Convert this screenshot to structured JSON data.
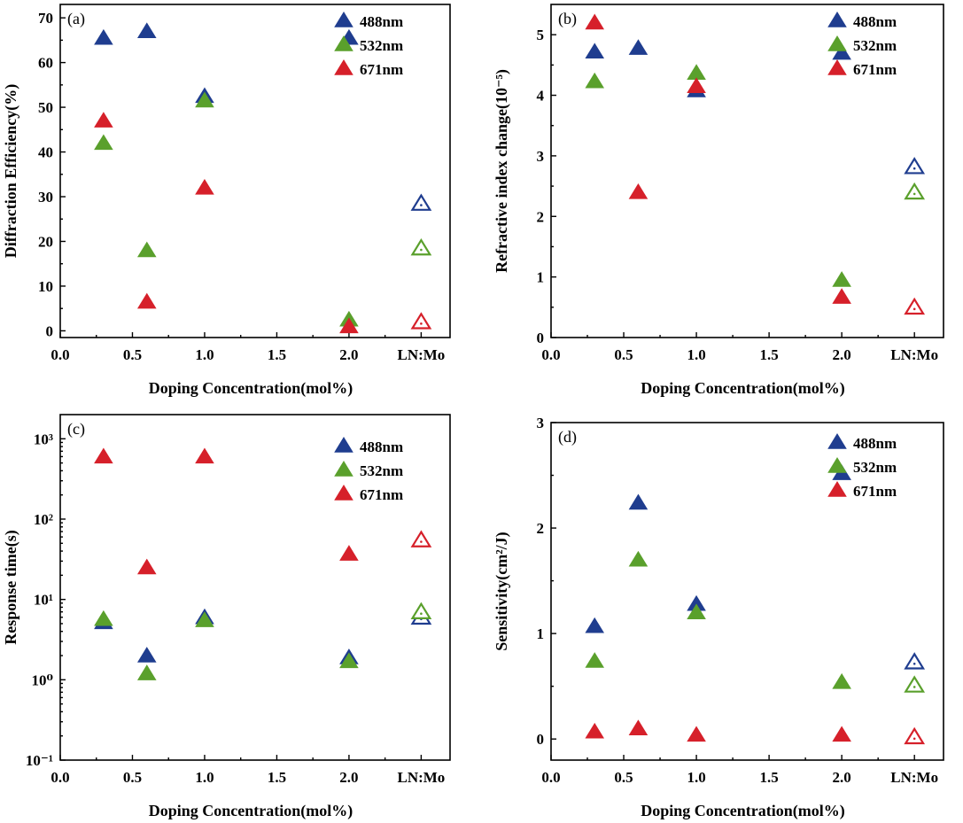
{
  "colors": {
    "488nm": "#1f3d8f",
    "532nm": "#5aa02c",
    "671nm": "#d6202a"
  },
  "chart_data": [
    {
      "type": "scatter",
      "panel_label": "(a)",
      "xlabel": "Doping Concentration(mol%)",
      "ylabel": "Diffraction Efficiency(%)",
      "x_tick_labels": [
        "0.0",
        "0.5",
        "1.0",
        "1.5",
        "2.0",
        "LN:Mo"
      ],
      "x_ticks": [
        0,
        0.5,
        1,
        1.5,
        2,
        2.5
      ],
      "xlim": [
        0,
        2.7
      ],
      "ylim": [
        -1.5,
        73
      ],
      "y_ticks": [
        0,
        10,
        20,
        30,
        40,
        50,
        60,
        70
      ],
      "y_tick_labels": [
        "0",
        "10",
        "20",
        "30",
        "40",
        "50",
        "60",
        "70"
      ],
      "yscale": "linear",
      "legend_position": "top-right",
      "series": [
        {
          "name": "488nm",
          "x": [
            0.3,
            0.6,
            1.0,
            2.0,
            2.5
          ],
          "y": [
            65.5,
            67.0,
            52.5,
            65.5,
            28.5
          ],
          "hollow": [
            false,
            false,
            false,
            false,
            true
          ]
        },
        {
          "name": "532nm",
          "x": [
            0.3,
            0.6,
            1.0,
            2.0,
            2.5
          ],
          "y": [
            42.0,
            18.0,
            51.5,
            2.5,
            18.5
          ],
          "hollow": [
            false,
            false,
            false,
            false,
            true
          ]
        },
        {
          "name": "671nm",
          "x": [
            0.3,
            0.6,
            1.0,
            2.0,
            2.5
          ],
          "y": [
            47.0,
            6.5,
            32.0,
            1.0,
            2.0
          ],
          "hollow": [
            false,
            false,
            false,
            false,
            true
          ]
        }
      ]
    },
    {
      "type": "scatter",
      "panel_label": "(b)",
      "xlabel": "Doping Concentration(mol%)",
      "ylabel": "Refractive index change(10⁻⁵)",
      "x_tick_labels": [
        "0.0",
        "0.5",
        "1.0",
        "1.5",
        "2.0",
        "LN:Mo"
      ],
      "x_ticks": [
        0,
        0.5,
        1,
        1.5,
        2,
        2.5
      ],
      "xlim": [
        0,
        2.7
      ],
      "ylim": [
        0,
        5.5
      ],
      "y_ticks": [
        0,
        1,
        2,
        3,
        4,
        5
      ],
      "y_tick_labels": [
        "0",
        "1",
        "2",
        "3",
        "4",
        "5"
      ],
      "yscale": "linear",
      "legend_position": "top-right",
      "series": [
        {
          "name": "488nm",
          "x": [
            0.3,
            0.6,
            1.0,
            2.0,
            2.5
          ],
          "y": [
            4.72,
            4.78,
            4.08,
            4.7,
            2.82
          ],
          "hollow": [
            false,
            false,
            false,
            false,
            true
          ]
        },
        {
          "name": "532nm",
          "x": [
            0.3,
            0.6,
            1.0,
            2.0,
            2.5
          ],
          "y": [
            4.23,
            null,
            4.37,
            0.95,
            2.4
          ],
          "hollow": [
            false,
            false,
            false,
            false,
            true
          ]
        },
        {
          "name": "671nm",
          "x": [
            0.3,
            0.6,
            1.0,
            2.0,
            2.5
          ],
          "y": [
            5.2,
            2.4,
            4.15,
            0.67,
            0.5
          ],
          "hollow": [
            false,
            false,
            false,
            false,
            true
          ]
        }
      ]
    },
    {
      "type": "scatter",
      "panel_label": "(c)",
      "xlabel": "Doping Concentration(mol%)",
      "ylabel": "Response time(s)",
      "x_tick_labels": [
        "0.0",
        "0.5",
        "1.0",
        "1.5",
        "2.0",
        "LN:Mo"
      ],
      "x_ticks": [
        0,
        0.5,
        1,
        1.5,
        2,
        2.5
      ],
      "xlim": [
        0,
        2.7
      ],
      "ylim": [
        0.1,
        2000
      ],
      "y_ticks": [
        0.1,
        1,
        10,
        100,
        1000
      ],
      "y_tick_labels": [
        "10⁻¹",
        "10⁰",
        "10¹",
        "10²",
        "10³"
      ],
      "yscale": "log",
      "legend_position": "top-right",
      "series": [
        {
          "name": "488nm",
          "x": [
            0.3,
            0.6,
            1.0,
            2.0,
            2.5
          ],
          "y": [
            5.2,
            2.0,
            6.0,
            1.9,
            6.0
          ],
          "hollow": [
            false,
            false,
            false,
            false,
            true
          ]
        },
        {
          "name": "532nm",
          "x": [
            0.3,
            0.6,
            1.0,
            2.0,
            2.5
          ],
          "y": [
            5.7,
            1.2,
            5.5,
            1.7,
            7.0
          ],
          "hollow": [
            false,
            false,
            false,
            false,
            true
          ]
        },
        {
          "name": "671nm",
          "x": [
            0.3,
            0.6,
            1.0,
            2.0,
            2.5
          ],
          "y": [
            600,
            25,
            600,
            37,
            55
          ],
          "hollow": [
            false,
            false,
            false,
            false,
            true
          ]
        }
      ]
    },
    {
      "type": "scatter",
      "panel_label": "(d)",
      "xlabel": "Doping Concentration(mol%)",
      "ylabel": "Sensitivity(cm²/J)",
      "x_tick_labels": [
        "0.0",
        "0.5",
        "1.0",
        "1.5",
        "2.0",
        "LN:Mo"
      ],
      "x_ticks": [
        0,
        0.5,
        1,
        1.5,
        2,
        2.5
      ],
      "xlim": [
        0,
        2.7
      ],
      "ylim": [
        -0.2,
        3
      ],
      "y_ticks": [
        0,
        1,
        2,
        3
      ],
      "y_tick_labels": [
        "0",
        "1",
        "2",
        "3"
      ],
      "yscale": "linear",
      "legend_position": "top-right",
      "series": [
        {
          "name": "488nm",
          "x": [
            0.3,
            0.6,
            1.0,
            2.0,
            2.5
          ],
          "y": [
            1.07,
            2.24,
            1.28,
            2.52,
            0.73
          ],
          "hollow": [
            false,
            false,
            false,
            false,
            true
          ]
        },
        {
          "name": "532nm",
          "x": [
            0.3,
            0.6,
            1.0,
            2.0,
            2.5
          ],
          "y": [
            0.74,
            1.7,
            1.2,
            0.54,
            0.51
          ],
          "hollow": [
            false,
            false,
            false,
            false,
            true
          ]
        },
        {
          "name": "671nm",
          "x": [
            0.3,
            0.6,
            1.0,
            2.0,
            2.5
          ],
          "y": [
            0.07,
            0.1,
            0.04,
            0.04,
            0.02
          ],
          "hollow": [
            false,
            false,
            false,
            false,
            true
          ]
        }
      ]
    }
  ]
}
